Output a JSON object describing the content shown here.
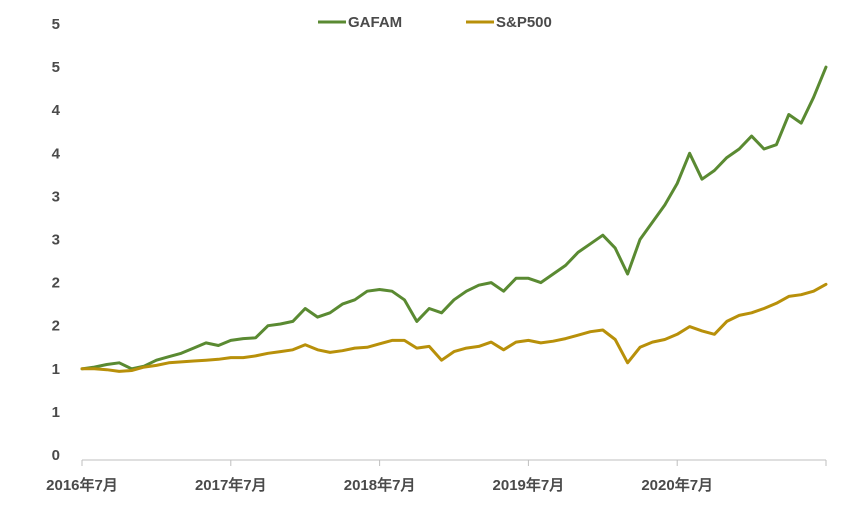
{
  "chart_data": {
    "type": "line",
    "title": "",
    "xlabel": "",
    "ylabel": "",
    "ylim": [
      0,
      5
    ],
    "y_tick_labels": [
      "0",
      "1",
      "1",
      "2",
      "2",
      "3",
      "3",
      "4",
      "4",
      "5",
      "5"
    ],
    "x_tick_labels": [
      "2016年7月",
      "2017年7月",
      "2018年7月",
      "2019年7月",
      "2020年7月"
    ],
    "x_range": [
      "2016-07",
      "2021-07"
    ],
    "grid": false,
    "legend_position": "top-center",
    "series": [
      {
        "name": "GAFAM",
        "color": "#5a8a32",
        "points": [
          [
            "2016-07",
            1.0
          ],
          [
            "2016-08",
            1.02
          ],
          [
            "2016-09",
            1.05
          ],
          [
            "2016-10",
            1.07
          ],
          [
            "2016-11",
            1.0
          ],
          [
            "2016-12",
            1.03
          ],
          [
            "2017-01",
            1.1
          ],
          [
            "2017-02",
            1.14
          ],
          [
            "2017-03",
            1.18
          ],
          [
            "2017-04",
            1.24
          ],
          [
            "2017-05",
            1.3
          ],
          [
            "2017-06",
            1.27
          ],
          [
            "2017-07",
            1.33
          ],
          [
            "2017-08",
            1.35
          ],
          [
            "2017-09",
            1.36
          ],
          [
            "2017-10",
            1.5
          ],
          [
            "2017-11",
            1.52
          ],
          [
            "2017-12",
            1.55
          ],
          [
            "2018-01",
            1.7
          ],
          [
            "2018-02",
            1.6
          ],
          [
            "2018-03",
            1.65
          ],
          [
            "2018-04",
            1.75
          ],
          [
            "2018-05",
            1.8
          ],
          [
            "2018-06",
            1.9
          ],
          [
            "2018-07",
            1.92
          ],
          [
            "2018-08",
            1.9
          ],
          [
            "2018-09",
            1.8
          ],
          [
            "2018-10",
            1.55
          ],
          [
            "2018-11",
            1.7
          ],
          [
            "2018-12",
            1.65
          ],
          [
            "2019-01",
            1.8
          ],
          [
            "2019-02",
            1.9
          ],
          [
            "2019-03",
            1.97
          ],
          [
            "2019-04",
            2.0
          ],
          [
            "2019-05",
            1.9
          ],
          [
            "2019-06",
            2.05
          ],
          [
            "2019-07",
            2.05
          ],
          [
            "2019-08",
            2.0
          ],
          [
            "2019-09",
            2.1
          ],
          [
            "2019-10",
            2.2
          ],
          [
            "2019-11",
            2.35
          ],
          [
            "2019-12",
            2.45
          ],
          [
            "2020-01",
            2.55
          ],
          [
            "2020-02",
            2.4
          ],
          [
            "2020-03",
            2.1
          ],
          [
            "2020-04",
            2.5
          ],
          [
            "2020-05",
            2.7
          ],
          [
            "2020-06",
            2.9
          ],
          [
            "2020-07",
            3.15
          ],
          [
            "2020-08",
            3.5
          ],
          [
            "2020-09",
            3.2
          ],
          [
            "2020-10",
            3.3
          ],
          [
            "2020-11",
            3.45
          ],
          [
            "2020-12",
            3.55
          ],
          [
            "2021-01",
            3.7
          ],
          [
            "2021-02",
            3.55
          ],
          [
            "2021-03",
            3.6
          ],
          [
            "2021-04",
            3.95
          ],
          [
            "2021-05",
            3.85
          ],
          [
            "2021-06",
            4.15
          ],
          [
            "2021-07",
            4.5
          ]
        ]
      },
      {
        "name": "S&P500",
        "color": "#b8900a",
        "points": [
          [
            "2016-07",
            1.0
          ],
          [
            "2016-08",
            1.0
          ],
          [
            "2016-09",
            0.99
          ],
          [
            "2016-10",
            0.97
          ],
          [
            "2016-11",
            0.98
          ],
          [
            "2016-12",
            1.02
          ],
          [
            "2017-01",
            1.04
          ],
          [
            "2017-02",
            1.07
          ],
          [
            "2017-03",
            1.08
          ],
          [
            "2017-04",
            1.09
          ],
          [
            "2017-05",
            1.1
          ],
          [
            "2017-06",
            1.11
          ],
          [
            "2017-07",
            1.13
          ],
          [
            "2017-08",
            1.13
          ],
          [
            "2017-09",
            1.15
          ],
          [
            "2017-10",
            1.18
          ],
          [
            "2017-11",
            1.2
          ],
          [
            "2017-12",
            1.22
          ],
          [
            "2018-01",
            1.28
          ],
          [
            "2018-02",
            1.22
          ],
          [
            "2018-03",
            1.19
          ],
          [
            "2018-04",
            1.21
          ],
          [
            "2018-05",
            1.24
          ],
          [
            "2018-06",
            1.25
          ],
          [
            "2018-07",
            1.29
          ],
          [
            "2018-08",
            1.33
          ],
          [
            "2018-09",
            1.33
          ],
          [
            "2018-10",
            1.24
          ],
          [
            "2018-11",
            1.26
          ],
          [
            "2018-12",
            1.1
          ],
          [
            "2019-01",
            1.2
          ],
          [
            "2019-02",
            1.24
          ],
          [
            "2019-03",
            1.26
          ],
          [
            "2019-04",
            1.31
          ],
          [
            "2019-05",
            1.22
          ],
          [
            "2019-06",
            1.31
          ],
          [
            "2019-07",
            1.33
          ],
          [
            "2019-08",
            1.3
          ],
          [
            "2019-09",
            1.32
          ],
          [
            "2019-10",
            1.35
          ],
          [
            "2019-11",
            1.39
          ],
          [
            "2019-12",
            1.43
          ],
          [
            "2020-01",
            1.45
          ],
          [
            "2020-02",
            1.34
          ],
          [
            "2020-03",
            1.07
          ],
          [
            "2020-04",
            1.25
          ],
          [
            "2020-05",
            1.31
          ],
          [
            "2020-06",
            1.34
          ],
          [
            "2020-07",
            1.4
          ],
          [
            "2020-08",
            1.49
          ],
          [
            "2020-09",
            1.44
          ],
          [
            "2020-10",
            1.4
          ],
          [
            "2020-11",
            1.55
          ],
          [
            "2020-12",
            1.62
          ],
          [
            "2021-01",
            1.65
          ],
          [
            "2021-02",
            1.7
          ],
          [
            "2021-03",
            1.76
          ],
          [
            "2021-04",
            1.84
          ],
          [
            "2021-05",
            1.86
          ],
          [
            "2021-06",
            1.9
          ],
          [
            "2021-07",
            1.98
          ]
        ]
      }
    ]
  }
}
